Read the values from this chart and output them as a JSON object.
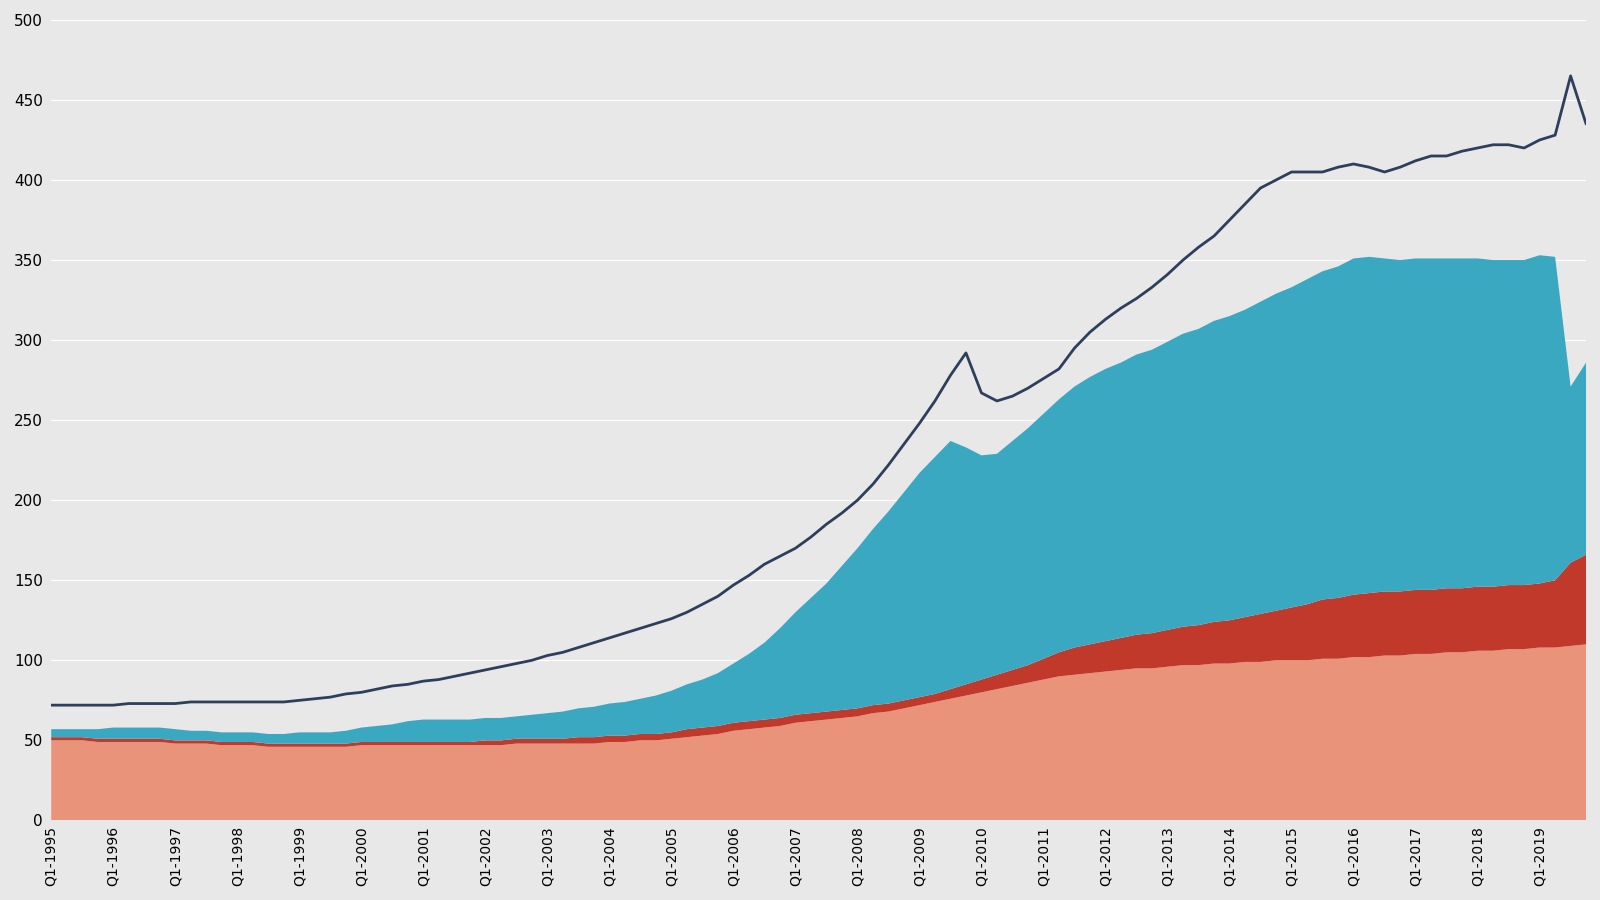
{
  "bg_color": "#e8e8e8",
  "plot_bg_color": "#e8e8e8",
  "line_color": "#2e3f5c",
  "area1_color": "#e8937a",
  "area2_color": "#c0392b",
  "area3_color": "#3aa8c1",
  "ylim": [
    0,
    500
  ],
  "yticks": [
    0,
    50,
    100,
    150,
    200,
    250,
    300,
    350,
    400,
    450,
    500
  ],
  "xtick_labels": [
    "Q1-1995",
    "Q1-1996",
    "Q1-1997",
    "Q1-1998",
    "Q1-1999",
    "Q1-2000",
    "Q1-2001",
    "Q1-2002",
    "Q1-2003",
    "Q1-2004",
    "Q1-2005",
    "Q1-2006",
    "Q1-2007",
    "Q1-2008",
    "Q1-2009",
    "Q1-2010",
    "Q1-2011",
    "Q1-2012",
    "Q1-2013",
    "Q1-2014",
    "Q1-2015",
    "Q1-2016",
    "Q1-2017",
    "Q1-2018",
    "Q1-2019"
  ],
  "salmon_area": [
    50,
    50,
    50,
    49,
    49,
    49,
    49,
    49,
    48,
    48,
    48,
    47,
    47,
    47,
    46,
    46,
    46,
    46,
    46,
    46,
    47,
    47,
    47,
    47,
    47,
    47,
    47,
    47,
    47,
    47,
    48,
    48,
    48,
    48,
    48,
    48,
    49,
    49,
    50,
    50,
    51,
    52,
    53,
    54,
    56,
    57,
    58,
    59,
    61,
    62,
    63,
    64,
    65,
    67,
    68,
    70,
    72,
    74,
    76,
    78,
    80,
    82,
    84,
    86,
    88,
    90,
    91,
    92,
    93,
    94,
    95,
    95,
    96,
    97,
    97,
    98,
    98,
    99,
    99,
    100,
    100,
    100,
    101,
    101,
    102,
    102,
    103,
    103,
    104,
    104,
    105,
    105,
    106,
    106,
    107,
    107,
    108,
    108,
    109,
    110
  ],
  "red_area": [
    2,
    2,
    2,
    2,
    2,
    2,
    2,
    2,
    2,
    2,
    2,
    2,
    2,
    2,
    2,
    2,
    2,
    2,
    2,
    2,
    2,
    2,
    2,
    2,
    2,
    2,
    2,
    2,
    3,
    3,
    3,
    3,
    3,
    3,
    4,
    4,
    4,
    4,
    4,
    4,
    4,
    5,
    5,
    5,
    5,
    5,
    5,
    5,
    5,
    5,
    5,
    5,
    5,
    5,
    5,
    5,
    5,
    5,
    6,
    7,
    8,
    9,
    10,
    11,
    13,
    15,
    17,
    18,
    19,
    20,
    21,
    22,
    23,
    24,
    25,
    26,
    27,
    28,
    30,
    31,
    33,
    35,
    37,
    38,
    39,
    40,
    40,
    40,
    40,
    40,
    40,
    40,
    40,
    40,
    40,
    40,
    40,
    42,
    52,
    56
  ],
  "teal_area": [
    5,
    5,
    5,
    6,
    7,
    7,
    7,
    7,
    7,
    6,
    6,
    6,
    6,
    6,
    6,
    6,
    7,
    7,
    7,
    8,
    9,
    10,
    11,
    13,
    14,
    14,
    14,
    14,
    14,
    14,
    14,
    15,
    16,
    17,
    18,
    19,
    20,
    21,
    22,
    24,
    26,
    28,
    30,
    33,
    37,
    42,
    48,
    56,
    64,
    72,
    80,
    90,
    100,
    110,
    120,
    130,
    140,
    148,
    155,
    148,
    140,
    138,
    143,
    148,
    153,
    158,
    163,
    167,
    170,
    172,
    175,
    177,
    180,
    183,
    185,
    188,
    190,
    192,
    195,
    198,
    200,
    203,
    205,
    207,
    210,
    210,
    208,
    207,
    207,
    207,
    206,
    206,
    205,
    204,
    203,
    203,
    205,
    202,
    110,
    120
  ],
  "line_data": [
    72,
    72,
    72,
    72,
    72,
    73,
    73,
    73,
    73,
    74,
    74,
    74,
    74,
    74,
    74,
    74,
    75,
    76,
    77,
    79,
    80,
    82,
    84,
    85,
    87,
    88,
    90,
    92,
    94,
    96,
    98,
    100,
    103,
    105,
    108,
    111,
    114,
    117,
    120,
    123,
    126,
    130,
    135,
    140,
    147,
    153,
    160,
    165,
    170,
    177,
    185,
    192,
    200,
    210,
    222,
    235,
    248,
    262,
    278,
    292,
    267,
    262,
    265,
    270,
    276,
    282,
    295,
    305,
    313,
    320,
    326,
    333,
    341,
    350,
    358,
    365,
    375,
    385,
    395,
    400,
    405,
    405,
    405,
    408,
    410,
    408,
    405,
    408,
    412,
    415,
    415,
    418,
    420,
    422,
    422,
    420,
    425,
    428,
    465,
    435
  ]
}
